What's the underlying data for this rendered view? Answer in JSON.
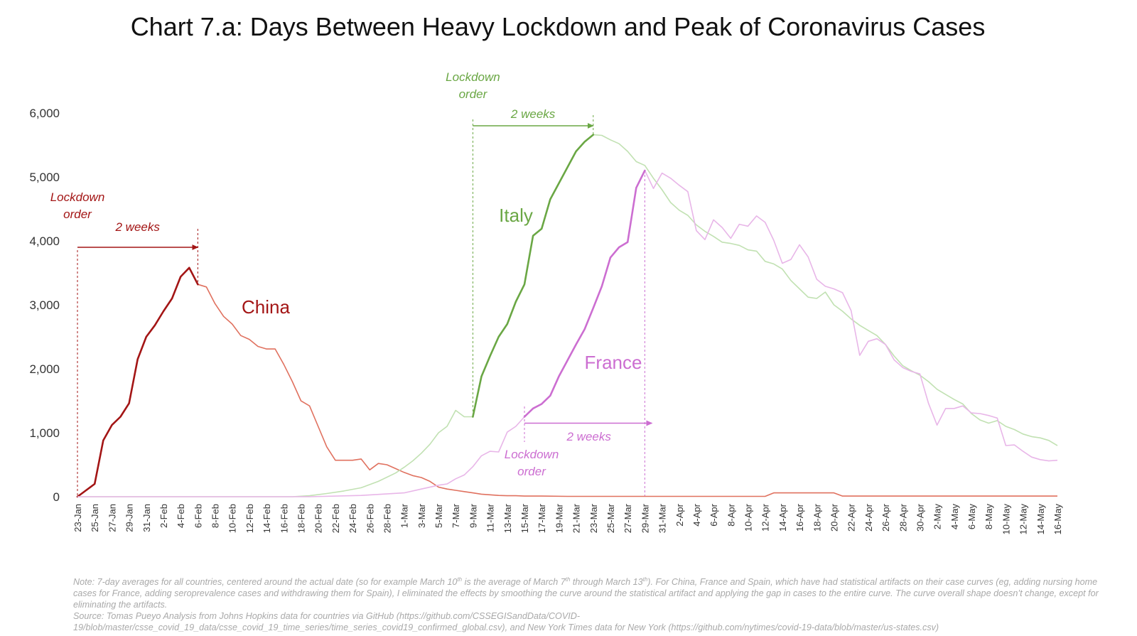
{
  "chart_data": {
    "type": "line",
    "title": "Chart 7.a: Days Between Heavy Lockdown and Peak of Coronavirus Cases",
    "xlabel": "",
    "ylabel": "",
    "ylim": [
      0,
      6000
    ],
    "y_ticks": [
      "0",
      "1,000",
      "2,000",
      "3,000",
      "4,000",
      "5,000",
      "6,000"
    ],
    "x_start": "2020-01-23",
    "x_end": "2020-05-16",
    "x_tick_labels": [
      "23-Jan",
      "25-Jan",
      "27-Jan",
      "29-Jan",
      "31-Jan",
      "2-Feb",
      "4-Feb",
      "6-Feb",
      "8-Feb",
      "10-Feb",
      "12-Feb",
      "14-Feb",
      "16-Feb",
      "18-Feb",
      "20-Feb",
      "22-Feb",
      "24-Feb",
      "26-Feb",
      "28-Feb",
      "1-Mar",
      "3-Mar",
      "5-Mar",
      "7-Mar",
      "9-Mar",
      "11-Mar",
      "13-Mar",
      "15-Mar",
      "17-Mar",
      "19-Mar",
      "21-Mar",
      "23-Mar",
      "25-Mar",
      "27-Mar",
      "29-Mar",
      "31-Mar",
      "2-Apr",
      "4-Apr",
      "6-Apr",
      "8-Apr",
      "10-Apr",
      "12-Apr",
      "14-Apr",
      "16-Apr",
      "18-Apr",
      "20-Apr",
      "22-Apr",
      "24-Apr",
      "26-Apr",
      "28-Apr",
      "30-Apr",
      "2-May",
      "4-May",
      "6-May",
      "8-May",
      "10-May",
      "12-May",
      "14-May",
      "16-May"
    ],
    "grid": false,
    "legend": "none",
    "series": [
      {
        "name": "China",
        "color": "#e0715f",
        "highlight_color": "#a31515",
        "highlight_range": [
          "2020-01-23",
          "2020-02-06"
        ],
        "points": [
          [
            "2020-01-23",
            0
          ],
          [
            "2020-01-24",
            100
          ],
          [
            "2020-01-25",
            200
          ],
          [
            "2020-01-26",
            880
          ],
          [
            "2020-01-27",
            1120
          ],
          [
            "2020-01-28",
            1250
          ],
          [
            "2020-01-29",
            1460
          ],
          [
            "2020-01-30",
            2150
          ],
          [
            "2020-01-31",
            2500
          ],
          [
            "2020-02-01",
            2680
          ],
          [
            "2020-02-02",
            2900
          ],
          [
            "2020-02-03",
            3100
          ],
          [
            "2020-02-04",
            3440
          ],
          [
            "2020-02-05",
            3580
          ],
          [
            "2020-02-06",
            3320
          ],
          [
            "2020-02-07",
            3280
          ],
          [
            "2020-02-08",
            3020
          ],
          [
            "2020-02-09",
            2820
          ],
          [
            "2020-02-10",
            2700
          ],
          [
            "2020-02-11",
            2520
          ],
          [
            "2020-02-12",
            2460
          ],
          [
            "2020-02-13",
            2350
          ],
          [
            "2020-02-14",
            2310
          ],
          [
            "2020-02-15",
            2310
          ],
          [
            "2020-02-16",
            2070
          ],
          [
            "2020-02-17",
            1800
          ],
          [
            "2020-02-18",
            1500
          ],
          [
            "2020-02-19",
            1420
          ],
          [
            "2020-02-20",
            1100
          ],
          [
            "2020-02-21",
            780
          ],
          [
            "2020-02-22",
            570
          ],
          [
            "2020-02-23",
            570
          ],
          [
            "2020-02-24",
            570
          ],
          [
            "2020-02-25",
            590
          ],
          [
            "2020-02-26",
            420
          ],
          [
            "2020-02-27",
            520
          ],
          [
            "2020-02-28",
            500
          ],
          [
            "2020-02-29",
            440
          ],
          [
            "2020-03-01",
            380
          ],
          [
            "2020-03-02",
            330
          ],
          [
            "2020-03-03",
            300
          ],
          [
            "2020-03-04",
            240
          ],
          [
            "2020-03-05",
            150
          ],
          [
            "2020-03-06",
            120
          ],
          [
            "2020-03-07",
            100
          ],
          [
            "2020-03-08",
            80
          ],
          [
            "2020-03-09",
            60
          ],
          [
            "2020-03-10",
            40
          ],
          [
            "2020-03-11",
            30
          ],
          [
            "2020-03-12",
            20
          ],
          [
            "2020-03-13",
            15
          ],
          [
            "2020-03-14",
            15
          ],
          [
            "2020-03-15",
            10
          ],
          [
            "2020-03-17",
            10
          ],
          [
            "2020-03-20",
            5
          ],
          [
            "2020-04-01",
            5
          ],
          [
            "2020-04-12",
            5
          ],
          [
            "2020-04-13",
            60
          ],
          [
            "2020-04-20",
            60
          ],
          [
            "2020-04-21",
            10
          ],
          [
            "2020-05-16",
            10
          ]
        ]
      },
      {
        "name": "Italy",
        "color": "#c1e1b2",
        "highlight_color": "#6aa744",
        "highlight_range": [
          "2020-03-09",
          "2020-03-23"
        ],
        "points": [
          [
            "2020-01-23",
            0
          ],
          [
            "2020-02-17",
            0
          ],
          [
            "2020-02-19",
            15
          ],
          [
            "2020-02-21",
            50
          ],
          [
            "2020-02-23",
            90
          ],
          [
            "2020-02-25",
            140
          ],
          [
            "2020-02-27",
            240
          ],
          [
            "2020-02-29",
            370
          ],
          [
            "2020-03-01",
            460
          ],
          [
            "2020-03-02",
            560
          ],
          [
            "2020-03-03",
            680
          ],
          [
            "2020-03-04",
            820
          ],
          [
            "2020-03-05",
            1000
          ],
          [
            "2020-03-06",
            1100
          ],
          [
            "2020-03-07",
            1350
          ],
          [
            "2020-03-08",
            1250
          ],
          [
            "2020-03-09",
            1250
          ],
          [
            "2020-03-10",
            1880
          ],
          [
            "2020-03-11",
            2200
          ],
          [
            "2020-03-12",
            2500
          ],
          [
            "2020-03-13",
            2700
          ],
          [
            "2020-03-14",
            3050
          ],
          [
            "2020-03-15",
            3320
          ],
          [
            "2020-03-16",
            4080
          ],
          [
            "2020-03-17",
            4190
          ],
          [
            "2020-03-18",
            4650
          ],
          [
            "2020-03-19",
            4900
          ],
          [
            "2020-03-20",
            5150
          ],
          [
            "2020-03-21",
            5400
          ],
          [
            "2020-03-22",
            5550
          ],
          [
            "2020-03-23",
            5660
          ],
          [
            "2020-03-24",
            5650
          ],
          [
            "2020-03-25",
            5580
          ],
          [
            "2020-03-26",
            5520
          ],
          [
            "2020-03-27",
            5400
          ],
          [
            "2020-03-28",
            5240
          ],
          [
            "2020-03-29",
            5180
          ],
          [
            "2020-03-30",
            4980
          ],
          [
            "2020-03-31",
            4800
          ],
          [
            "2020-04-01",
            4600
          ],
          [
            "2020-04-02",
            4480
          ],
          [
            "2020-04-03",
            4400
          ],
          [
            "2020-04-04",
            4250
          ],
          [
            "2020-04-05",
            4150
          ],
          [
            "2020-04-06",
            4070
          ],
          [
            "2020-04-07",
            3980
          ],
          [
            "2020-04-08",
            3960
          ],
          [
            "2020-04-09",
            3930
          ],
          [
            "2020-04-10",
            3860
          ],
          [
            "2020-04-11",
            3840
          ],
          [
            "2020-04-12",
            3680
          ],
          [
            "2020-04-13",
            3640
          ],
          [
            "2020-04-14",
            3560
          ],
          [
            "2020-04-15",
            3380
          ],
          [
            "2020-04-16",
            3250
          ],
          [
            "2020-04-17",
            3120
          ],
          [
            "2020-04-18",
            3100
          ],
          [
            "2020-04-19",
            3200
          ],
          [
            "2020-04-20",
            3000
          ],
          [
            "2020-04-21",
            2900
          ],
          [
            "2020-04-22",
            2780
          ],
          [
            "2020-04-23",
            2680
          ],
          [
            "2020-04-24",
            2600
          ],
          [
            "2020-04-25",
            2520
          ],
          [
            "2020-04-26",
            2380
          ],
          [
            "2020-04-27",
            2200
          ],
          [
            "2020-04-28",
            2050
          ],
          [
            "2020-04-29",
            1970
          ],
          [
            "2020-04-30",
            1900
          ],
          [
            "2020-05-01",
            1800
          ],
          [
            "2020-05-02",
            1680
          ],
          [
            "2020-05-03",
            1600
          ],
          [
            "2020-05-04",
            1520
          ],
          [
            "2020-05-05",
            1450
          ],
          [
            "2020-05-06",
            1300
          ],
          [
            "2020-05-07",
            1200
          ],
          [
            "2020-05-08",
            1150
          ],
          [
            "2020-05-09",
            1190
          ],
          [
            "2020-05-10",
            1100
          ],
          [
            "2020-05-11",
            1050
          ],
          [
            "2020-05-12",
            980
          ],
          [
            "2020-05-13",
            940
          ],
          [
            "2020-05-14",
            920
          ],
          [
            "2020-05-15",
            880
          ],
          [
            "2020-05-16",
            800
          ]
        ]
      },
      {
        "name": "France",
        "color": "#e8b6e8",
        "highlight_color": "#cc6ed1",
        "highlight_range": [
          "2020-03-15",
          "2020-03-29"
        ],
        "points": [
          [
            "2020-01-23",
            0
          ],
          [
            "2020-02-19",
            0
          ],
          [
            "2020-02-25",
            20
          ],
          [
            "2020-03-01",
            60
          ],
          [
            "2020-03-03",
            120
          ],
          [
            "2020-03-05",
            180
          ],
          [
            "2020-03-06",
            200
          ],
          [
            "2020-03-07",
            280
          ],
          [
            "2020-03-08",
            340
          ],
          [
            "2020-03-09",
            470
          ],
          [
            "2020-03-10",
            640
          ],
          [
            "2020-03-11",
            710
          ],
          [
            "2020-03-12",
            700
          ],
          [
            "2020-03-13",
            1010
          ],
          [
            "2020-03-14",
            1100
          ],
          [
            "2020-03-15",
            1250
          ],
          [
            "2020-03-16",
            1380
          ],
          [
            "2020-03-17",
            1450
          ],
          [
            "2020-03-18",
            1580
          ],
          [
            "2020-03-19",
            1880
          ],
          [
            "2020-03-20",
            2130
          ],
          [
            "2020-03-21",
            2380
          ],
          [
            "2020-03-22",
            2620
          ],
          [
            "2020-03-23",
            2950
          ],
          [
            "2020-03-24",
            3290
          ],
          [
            "2020-03-25",
            3740
          ],
          [
            "2020-03-26",
            3900
          ],
          [
            "2020-03-27",
            3980
          ],
          [
            "2020-03-28",
            4830
          ],
          [
            "2020-03-29",
            5100
          ],
          [
            "2020-03-30",
            4820
          ],
          [
            "2020-03-31",
            5060
          ],
          [
            "2020-04-01",
            4980
          ],
          [
            "2020-04-02",
            4870
          ],
          [
            "2020-04-03",
            4770
          ],
          [
            "2020-04-04",
            4160
          ],
          [
            "2020-04-05",
            4020
          ],
          [
            "2020-04-06",
            4330
          ],
          [
            "2020-04-07",
            4210
          ],
          [
            "2020-04-08",
            4040
          ],
          [
            "2020-04-09",
            4260
          ],
          [
            "2020-04-10",
            4230
          ],
          [
            "2020-04-11",
            4390
          ],
          [
            "2020-04-12",
            4290
          ],
          [
            "2020-04-13",
            4010
          ],
          [
            "2020-04-14",
            3650
          ],
          [
            "2020-04-15",
            3710
          ],
          [
            "2020-04-16",
            3940
          ],
          [
            "2020-04-17",
            3750
          ],
          [
            "2020-04-18",
            3400
          ],
          [
            "2020-04-19",
            3290
          ],
          [
            "2020-04-20",
            3250
          ],
          [
            "2020-04-21",
            3190
          ],
          [
            "2020-04-22",
            2910
          ],
          [
            "2020-04-23",
            2210
          ],
          [
            "2020-04-24",
            2430
          ],
          [
            "2020-04-25",
            2470
          ],
          [
            "2020-04-26",
            2380
          ],
          [
            "2020-04-27",
            2140
          ],
          [
            "2020-04-28",
            2020
          ],
          [
            "2020-04-29",
            1960
          ],
          [
            "2020-04-30",
            1920
          ],
          [
            "2020-05-01",
            1460
          ],
          [
            "2020-05-02",
            1120
          ],
          [
            "2020-05-03",
            1380
          ],
          [
            "2020-05-04",
            1380
          ],
          [
            "2020-05-05",
            1420
          ],
          [
            "2020-05-06",
            1310
          ],
          [
            "2020-05-07",
            1300
          ],
          [
            "2020-05-08",
            1270
          ],
          [
            "2020-05-09",
            1230
          ],
          [
            "2020-05-10",
            800
          ],
          [
            "2020-05-11",
            810
          ],
          [
            "2020-05-12",
            710
          ],
          [
            "2020-05-13",
            620
          ],
          [
            "2020-05-14",
            580
          ],
          [
            "2020-05-15",
            560
          ],
          [
            "2020-05-16",
            570
          ]
        ]
      }
    ],
    "annotations": {
      "china": {
        "lockdown_label": [
          "Lockdown",
          "order"
        ],
        "lockdown_date": "2020-01-23",
        "peak_date": "2020-02-06",
        "arrow_value": 3900,
        "span_label": "2 weeks",
        "color": "#a31515"
      },
      "italy": {
        "lockdown_label": [
          "Lockdown",
          "order"
        ],
        "lockdown_date": "2020-03-09",
        "peak_date": "2020-03-23",
        "arrow_value": 5800,
        "span_label": "2 weeks",
        "color": "#6aa744"
      },
      "france": {
        "lockdown_label": [
          "Lockdown",
          "order"
        ],
        "lockdown_date": "2020-03-15",
        "peak_date": "2020-03-29",
        "arrow_value": 1150,
        "span_label": "2 weeks",
        "color": "#cc6ed1"
      }
    }
  },
  "footnote": {
    "note_prefix": "Note: 7-day averages for all countries, centered around the actual date (so for example March 10",
    "note_sup1": "th",
    "note_mid1": " is the average of March 7",
    "note_sup2": "th",
    "note_mid2": " through March 13",
    "note_sup3": "th",
    "note_rest": "). For China, France and Spain, which have had statistical artifacts on their case curves (eg, adding nursing home cases for France, adding seroprevalence cases and withdrawing them for Spain), I eliminated the effects by smoothing the curve around the statistical artifact and applying the gap in cases to the entire curve. The curve overall shape doesn’t change, except for eliminating the artifacts.",
    "source_line1": "Source: Tomas Pueyo Analysis from Johns Hopkins data for countries via GitHub (https://github.com/CSSEGISandData/COVID-",
    "source_line2": "19/blob/master/csse_covid_19_data/csse_covid_19_time_series/time_series_covid19_confirmed_global.csv), and New York Times data for New York (https://github.com/nytimes/covid-19-data/blob/master/us-states.csv)"
  }
}
